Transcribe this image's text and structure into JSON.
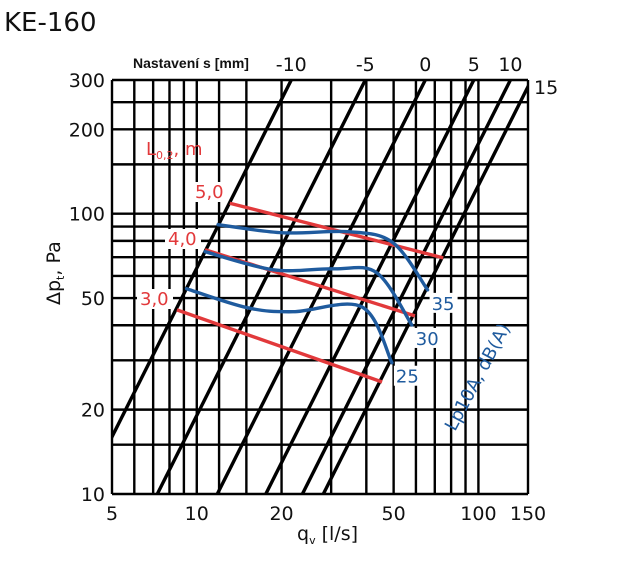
{
  "title": "KE-160",
  "chart_data": {
    "type": "line",
    "title": "KE-160",
    "xlabel": "q_v [l/s]",
    "xlabel_main": "q",
    "xlabel_sub": "v",
    "xlabel_rest": " [l/s]",
    "ylabel_main": "Δp",
    "ylabel_sub": "t",
    "ylabel_rest": ", Pa",
    "xscale": "log",
    "yscale": "log",
    "xlim": [
      5,
      150
    ],
    "ylim": [
      10,
      300
    ],
    "x_ticks": [
      "5",
      "10",
      "20",
      "50",
      "100",
      "150"
    ],
    "y_ticks": [
      "300",
      "200",
      "100",
      "50",
      "20",
      "10"
    ],
    "x_grid": [
      5,
      6,
      7,
      8,
      9,
      10,
      12,
      15,
      20,
      30,
      40,
      50,
      60,
      70,
      80,
      90,
      100,
      150
    ],
    "y_grid": [
      10,
      15,
      20,
      30,
      40,
      50,
      60,
      70,
      80,
      90,
      100,
      150,
      200,
      250,
      300
    ],
    "setting_title": "Nastavení s [mm]",
    "setting_lines": [
      {
        "label": "-10",
        "q_at_100Pa": 12.5
      },
      {
        "label": "-5",
        "q_at_100Pa": 22.9
      },
      {
        "label": "0",
        "q_at_100Pa": 37.4
      },
      {
        "label": "5",
        "q_at_100Pa": 55.6
      },
      {
        "label": "10",
        "q_at_100Pa": 75
      },
      {
        "label": "15",
        "q_at_100Pa": 89
      }
    ],
    "throw_title_main": "L",
    "throw_title_sub": "0,2",
    "throw_title_rest": ", m",
    "throw_lines": [
      {
        "label": "5,0",
        "points": [
          [
            13.1,
            109
          ],
          [
            75,
            69.6
          ]
        ]
      },
      {
        "label": "4,0",
        "points": [
          [
            10.7,
            74.4
          ],
          [
            59.5,
            43.2
          ]
        ]
      },
      {
        "label": "3,0",
        "points": [
          [
            8.5,
            45.4
          ],
          [
            45.5,
            25.1
          ]
        ]
      }
    ],
    "noise_title": "Lp10A, dB(A)",
    "noise_lines": [
      {
        "label": "35",
        "points": [
          [
            11.9,
            91.4
          ],
          [
            20.2,
            85.5
          ],
          [
            35,
            86.2
          ],
          [
            49.8,
            78.7
          ],
          [
            66,
            53.5
          ]
        ]
      },
      {
        "label": "30",
        "points": [
          [
            10.7,
            73.2
          ],
          [
            18.7,
            63.1
          ],
          [
            30.5,
            63.6
          ],
          [
            43.6,
            61.5
          ],
          [
            58,
            40.1
          ]
        ]
      },
      {
        "label": "25",
        "points": [
          [
            9.2,
            54
          ],
          [
            15.1,
            46.2
          ],
          [
            22,
            44.7
          ],
          [
            38.6,
            46.5
          ],
          [
            49.3,
            29.4
          ]
        ]
      }
    ],
    "colors": {
      "grid": "#000000",
      "throw": "#e2393b",
      "noise": "#1f5b9e"
    }
  }
}
